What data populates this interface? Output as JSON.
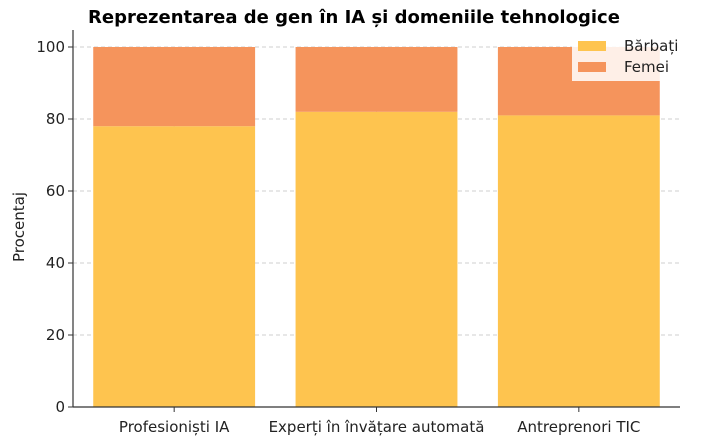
{
  "chart_data": {
    "type": "bar",
    "stacked": true,
    "title": "Reprezentarea de gen în IA și domeniile tehnologice",
    "xlabel": "",
    "ylabel": "Procentaj",
    "ylim": [
      0,
      100
    ],
    "yticks": [
      "0",
      "20",
      "40",
      "60",
      "80",
      "100"
    ],
    "grid": true,
    "legend_position": "top-right",
    "categories": [
      "Profesioniști IA",
      "Experți în învățare automată",
      "Antreprenori TIC"
    ],
    "series": [
      {
        "name": "Bărbați",
        "color": "#FEC44F",
        "values": [
          78,
          82,
          81
        ]
      },
      {
        "name": "Femei",
        "color": "#F5945C",
        "values": [
          22,
          18,
          19
        ]
      }
    ]
  }
}
